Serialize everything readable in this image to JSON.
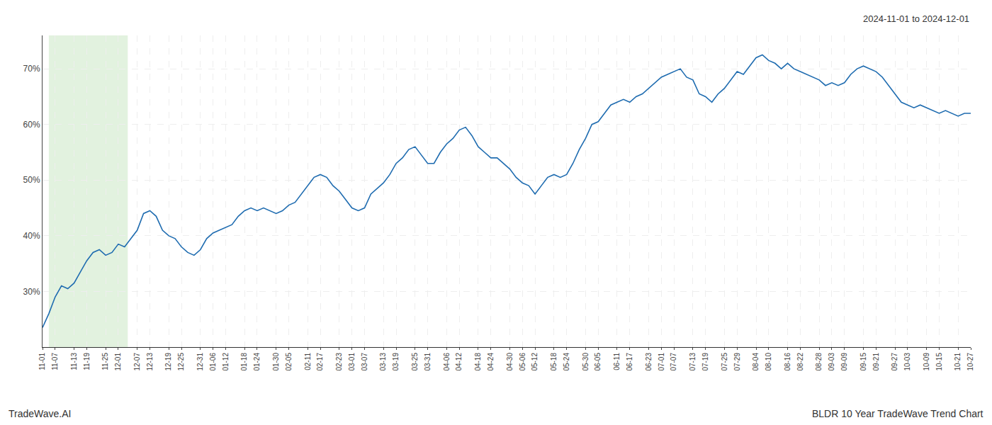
{
  "chart_data": {
    "type": "line",
    "annotations": [
      "2024-11-01 to 2024-12-01",
      "TradeWave.AI",
      "BLDR 10 Year TradeWave Trend Chart"
    ],
    "color": "#1f6cb0",
    "grid": true,
    "ylim": [
      20,
      76
    ],
    "yticks": [
      {
        "value": 30,
        "label": "30%"
      },
      {
        "value": 40,
        "label": "40%"
      },
      {
        "value": 50,
        "label": "50%"
      },
      {
        "value": 60,
        "label": "60%"
      },
      {
        "value": 70,
        "label": "70%"
      }
    ],
    "highlight": {
      "start": "11-07",
      "end": "12-01",
      "color": "#d6ecd2"
    },
    "categories": [
      "11-01",
      null,
      "11-07",
      null,
      null,
      "11-13",
      null,
      "11-19",
      null,
      null,
      "11-25",
      null,
      "12-01",
      null,
      null,
      "12-07",
      null,
      "12-13",
      null,
      null,
      "12-19",
      null,
      "12-25",
      null,
      null,
      "12-31",
      null,
      "01-06",
      null,
      "01-12",
      null,
      null,
      "01-18",
      null,
      "01-24",
      null,
      null,
      "01-30",
      null,
      "02-05",
      null,
      null,
      "02-11",
      null,
      "02-17",
      null,
      null,
      "02-23",
      null,
      "03-01",
      null,
      "03-07",
      null,
      null,
      "03-13",
      null,
      "03-19",
      null,
      null,
      "03-25",
      null,
      "03-31",
      null,
      null,
      "04-06",
      null,
      "04-12",
      null,
      null,
      "04-18",
      null,
      "04-24",
      null,
      null,
      "04-30",
      null,
      "05-06",
      null,
      "05-12",
      null,
      null,
      "05-18",
      null,
      "05-24",
      null,
      null,
      "05-30",
      null,
      "06-05",
      null,
      null,
      "06-11",
      null,
      "06-17",
      null,
      null,
      "06-23",
      null,
      "07-01",
      null,
      "07-07",
      null,
      null,
      "07-13",
      null,
      "07-19",
      null,
      null,
      "07-25",
      null,
      "07-29",
      null,
      null,
      "08-04",
      null,
      "08-10",
      null,
      null,
      "08-16",
      null,
      "08-22",
      null,
      null,
      "08-28",
      null,
      "09-03",
      null,
      "09-09",
      null,
      null,
      "09-15",
      null,
      "09-21",
      null,
      null,
      "09-27",
      null,
      "10-03",
      null,
      null,
      "10-09",
      null,
      "10-15",
      null,
      null,
      "10-21",
      null,
      "10-27"
    ],
    "values": [
      23.5,
      26.0,
      29.0,
      31.0,
      30.5,
      31.5,
      33.5,
      35.5,
      37.0,
      37.5,
      36.5,
      37.0,
      38.5,
      38.0,
      39.5,
      41.0,
      44.0,
      44.5,
      43.5,
      41.0,
      40.0,
      39.5,
      38.0,
      37.0,
      36.5,
      37.5,
      39.5,
      40.5,
      41.0,
      41.5,
      42.0,
      43.5,
      44.5,
      45.0,
      44.5,
      45.0,
      44.5,
      44.0,
      44.5,
      45.5,
      46.0,
      47.5,
      49.0,
      50.5,
      51.0,
      50.5,
      49.0,
      48.0,
      46.5,
      45.0,
      44.5,
      45.0,
      47.5,
      48.5,
      49.5,
      51.0,
      53.0,
      54.0,
      55.5,
      56.0,
      54.5,
      53.0,
      53.0,
      55.0,
      56.5,
      57.5,
      59.0,
      59.5,
      58.0,
      56.0,
      55.0,
      54.0,
      54.0,
      53.0,
      52.0,
      50.5,
      49.5,
      49.0,
      47.5,
      49.0,
      50.5,
      51.0,
      50.5,
      51.0,
      53.0,
      55.5,
      57.5,
      60.0,
      60.5,
      62.0,
      63.5,
      64.0,
      64.5,
      64.0,
      65.0,
      65.5,
      66.5,
      67.5,
      68.5,
      69.0,
      69.5,
      70.0,
      68.5,
      68.0,
      65.5,
      65.0,
      64.0,
      65.5,
      66.5,
      68.0,
      69.5,
      69.0,
      70.5,
      72.0,
      72.5,
      71.5,
      71.0,
      70.0,
      71.0,
      70.0,
      69.5,
      69.0,
      68.5,
      68.0,
      67.0,
      67.5,
      67.0,
      67.5,
      69.0,
      70.0,
      70.5,
      70.0,
      69.5,
      68.5,
      67.0,
      65.5,
      64.0,
      63.5,
      63.0,
      63.5,
      63.0,
      62.5,
      62.0,
      62.5,
      62.0,
      61.5,
      62.0,
      62.0
    ]
  }
}
